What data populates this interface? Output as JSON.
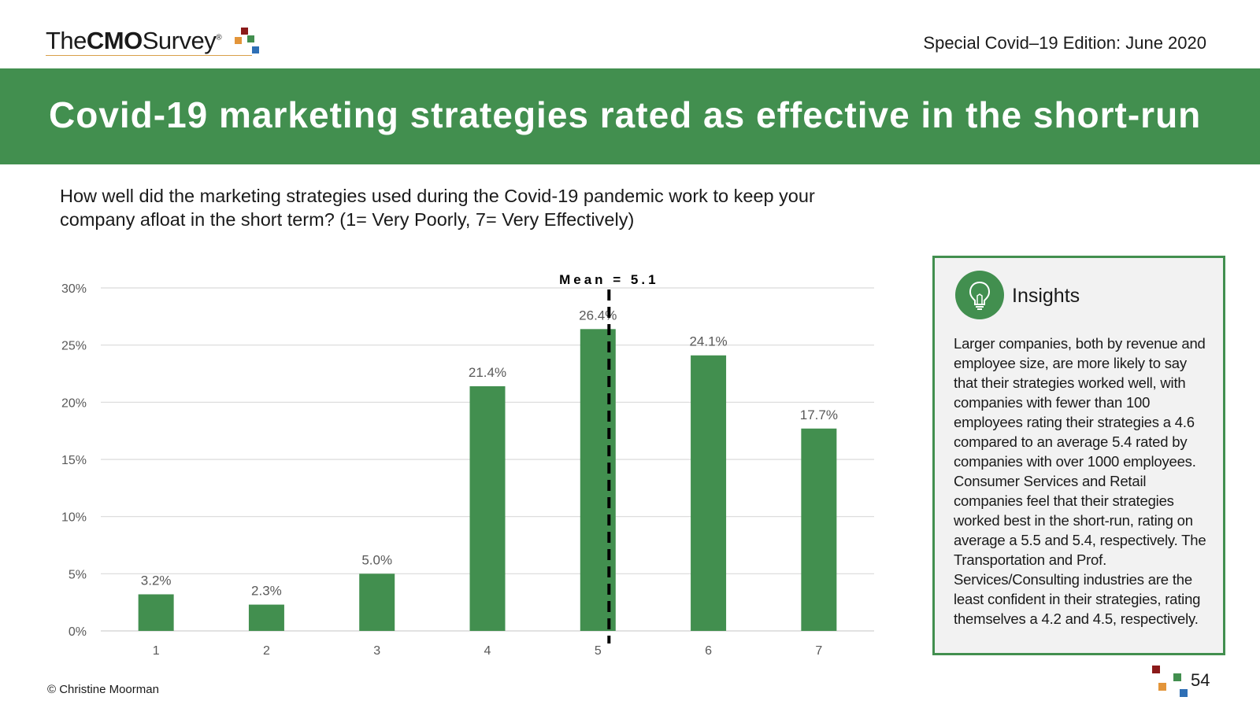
{
  "header": {
    "logo": {
      "text_light_1": "The",
      "text_bold": "CMO",
      "text_light_2": "Survey",
      "registered_mark": "®",
      "square_colors": [
        "#8b1a1a",
        "#e3953a",
        "#428f4f",
        "#2e6fb5"
      ]
    },
    "edition": "Special Covid–19 Edition: June 2020"
  },
  "banner": {
    "title": "Covid-19 marketing strategies rated as effective in the short-run",
    "background_color": "#428f4f"
  },
  "question": "How well did the marketing strategies used during the Covid-19 pandemic work to keep your company afloat in the short term? (1= Very Poorly, 7= Very Effectively)",
  "chart_data": {
    "type": "bar",
    "categories": [
      "1",
      "2",
      "3",
      "4",
      "5",
      "6",
      "7"
    ],
    "values": [
      3.2,
      2.3,
      5.0,
      21.4,
      26.4,
      24.1,
      17.7
    ],
    "value_labels": [
      "3.2%",
      "2.3%",
      "5.0%",
      "21.4%",
      "26.4%",
      "24.1%",
      "17.7%"
    ],
    "yticks": [
      0,
      5,
      10,
      15,
      20,
      25,
      30
    ],
    "ytick_labels": [
      "0%",
      "5%",
      "10%",
      "15%",
      "20%",
      "25%",
      "30%"
    ],
    "ylim": [
      0,
      30
    ],
    "grid": true,
    "bar_color": "#428f4f",
    "mean": 5.1,
    "mean_label": "Mean = 5.1",
    "title": "",
    "xlabel": "",
    "ylabel": ""
  },
  "insights": {
    "title": "Insights",
    "icon": "lightbulb-icon",
    "body": "Larger companies, both by revenue and employee size, are more likely to say that their strategies worked well, with companies with fewer than 100 employees rating their strategies a 4.6 compared to an average 5.4 rated by companies with over 1000 employees. Consumer Services and Retail companies feel that their strategies worked best in the short-run, rating on average a 5.5 and 5.4, respectively. The Transportation and Prof. Services/Consulting industries are the least confident in their strategies, rating themselves a 4.2 and 4.5, respectively."
  },
  "footer": {
    "copyright": "© Christine Moorman",
    "page_number": "54"
  }
}
